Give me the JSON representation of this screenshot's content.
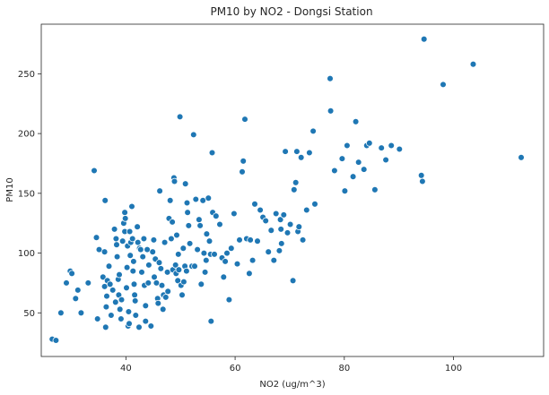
{
  "chart_data": {
    "type": "scatter",
    "title": "PM10 by NO2 - Dongsi Station",
    "xlabel": "NO2 (ug/m^3)",
    "ylabel": "PM10",
    "xlim": [
      24.5,
      116.5
    ],
    "ylim": [
      13.5,
      291.5
    ],
    "xticks": [
      40,
      60,
      80,
      100
    ],
    "yticks": [
      50,
      100,
      150,
      200,
      250
    ],
    "grid": false,
    "point_color": "#1f77b4",
    "points": [
      [
        26.5,
        28
      ],
      [
        27.2,
        27
      ],
      [
        28.1,
        50
      ],
      [
        29.1,
        75
      ],
      [
        29.8,
        85
      ],
      [
        30.1,
        83
      ],
      [
        30.8,
        62
      ],
      [
        31.2,
        69
      ],
      [
        31.8,
        50
      ],
      [
        33.1,
        75
      ],
      [
        34.2,
        169
      ],
      [
        34.6,
        113
      ],
      [
        34.8,
        45
      ],
      [
        35.1,
        103
      ],
      [
        35.8,
        80
      ],
      [
        36.1,
        101
      ],
      [
        36.2,
        144
      ],
      [
        36.3,
        38
      ],
      [
        36.1,
        72
      ],
      [
        36.4,
        55
      ],
      [
        36.6,
        77
      ],
      [
        36.5,
        64
      ],
      [
        36.9,
        89
      ],
      [
        37.1,
        74
      ],
      [
        37.3,
        48
      ],
      [
        37.6,
        69
      ],
      [
        37.9,
        120
      ],
      [
        38.2,
        112
      ],
      [
        38.3,
        107
      ],
      [
        38.4,
        97
      ],
      [
        38.1,
        59
      ],
      [
        38.6,
        78
      ],
      [
        38.7,
        65
      ],
      [
        38.8,
        82
      ],
      [
        38.9,
        53
      ],
      [
        39.1,
        45
      ],
      [
        39.2,
        61
      ],
      [
        39.4,
        110
      ],
      [
        39.6,
        125
      ],
      [
        39.8,
        118
      ],
      [
        39.8,
        134
      ],
      [
        39.9,
        129
      ],
      [
        40.1,
        71
      ],
      [
        40.3,
        106
      ],
      [
        40.2,
        88
      ],
      [
        40.4,
        39
      ],
      [
        40.5,
        51
      ],
      [
        40.6,
        41
      ],
      [
        40.7,
        118
      ],
      [
        40.8,
        98
      ],
      [
        40.9,
        109
      ],
      [
        41.1,
        139
      ],
      [
        41.2,
        112
      ],
      [
        41.3,
        85
      ],
      [
        41.4,
        93
      ],
      [
        41.5,
        74
      ],
      [
        41.6,
        65
      ],
      [
        41.7,
        60
      ],
      [
        41.8,
        48
      ],
      [
        42.1,
        122
      ],
      [
        42.2,
        109
      ],
      [
        42.4,
        38
      ],
      [
        42.5,
        104
      ],
      [
        42.7,
        103
      ],
      [
        42.9,
        84
      ],
      [
        43.1,
        97
      ],
      [
        43.3,
        112
      ],
      [
        43.4,
        73
      ],
      [
        43.6,
        56
      ],
      [
        43.6,
        43
      ],
      [
        43.9,
        103
      ],
      [
        44.1,
        75
      ],
      [
        44.2,
        90
      ],
      [
        44.6,
        39
      ],
      [
        44.9,
        101
      ],
      [
        45.2,
        80
      ],
      [
        45.1,
        111
      ],
      [
        45.4,
        95
      ],
      [
        45.6,
        75
      ],
      [
        45.8,
        62
      ],
      [
        45.9,
        58
      ],
      [
        46.1,
        92
      ],
      [
        46.2,
        152
      ],
      [
        46.4,
        87
      ],
      [
        46.6,
        73
      ],
      [
        46.8,
        53
      ],
      [
        46.9,
        65
      ],
      [
        47.1,
        109
      ],
      [
        47.3,
        63
      ],
      [
        47.6,
        84
      ],
      [
        47.7,
        68
      ],
      [
        47.9,
        129
      ],
      [
        48.1,
        144
      ],
      [
        48.3,
        112
      ],
      [
        48.5,
        126
      ],
      [
        48.6,
        86
      ],
      [
        48.8,
        163
      ],
      [
        48.9,
        160
      ],
      [
        49.1,
        90
      ],
      [
        49.3,
        115
      ],
      [
        49.2,
        83
      ],
      [
        49.5,
        77
      ],
      [
        49.6,
        99
      ],
      [
        49.7,
        86
      ],
      [
        49.9,
        214
      ],
      [
        50.1,
        73
      ],
      [
        50.3,
        65
      ],
      [
        50.5,
        104
      ],
      [
        50.6,
        76
      ],
      [
        50.8,
        89
      ],
      [
        50.9,
        158
      ],
      [
        51.1,
        85
      ],
      [
        51.2,
        142
      ],
      [
        51.3,
        134
      ],
      [
        51.5,
        123
      ],
      [
        51.7,
        108
      ],
      [
        52.1,
        89
      ],
      [
        52.4,
        199
      ],
      [
        52.6,
        89
      ],
      [
        52.8,
        145
      ],
      [
        53.1,
        103
      ],
      [
        53.4,
        128
      ],
      [
        53.6,
        123
      ],
      [
        53.8,
        74
      ],
      [
        54.1,
        144
      ],
      [
        54.3,
        100
      ],
      [
        54.5,
        84
      ],
      [
        54.7,
        94
      ],
      [
        54.8,
        116
      ],
      [
        55.1,
        146
      ],
      [
        55.3,
        110
      ],
      [
        55.5,
        99
      ],
      [
        55.6,
        43
      ],
      [
        55.8,
        184
      ],
      [
        55.9,
        134
      ],
      [
        56.2,
        99
      ],
      [
        56.5,
        131
      ],
      [
        57.2,
        124
      ],
      [
        57.6,
        96
      ],
      [
        57.9,
        80
      ],
      [
        58.2,
        93
      ],
      [
        58.5,
        100
      ],
      [
        58.9,
        61
      ],
      [
        59.3,
        104
      ],
      [
        59.8,
        133
      ],
      [
        60.4,
        91
      ],
      [
        60.8,
        111
      ],
      [
        61.3,
        168
      ],
      [
        61.5,
        177
      ],
      [
        61.8,
        212
      ],
      [
        62.1,
        112
      ],
      [
        62.6,
        83
      ],
      [
        62.8,
        111
      ],
      [
        63.2,
        94
      ],
      [
        63.6,
        141
      ],
      [
        64.1,
        110
      ],
      [
        64.6,
        136
      ],
      [
        65.1,
        130
      ],
      [
        65.6,
        127
      ],
      [
        66.1,
        101
      ],
      [
        66.6,
        119
      ],
      [
        67.1,
        94
      ],
      [
        67.5,
        133
      ],
      [
        68.1,
        102
      ],
      [
        68.3,
        128
      ],
      [
        68.4,
        120
      ],
      [
        68.5,
        108
      ],
      [
        68.9,
        132
      ],
      [
        69.2,
        185
      ],
      [
        69.6,
        117
      ],
      [
        70.1,
        124
      ],
      [
        70.6,
        77
      ],
      [
        70.8,
        153
      ],
      [
        71.1,
        159
      ],
      [
        71.3,
        185
      ],
      [
        71.5,
        118
      ],
      [
        71.7,
        122
      ],
      [
        72.1,
        180
      ],
      [
        72.4,
        111
      ],
      [
        73.1,
        136
      ],
      [
        73.6,
        184
      ],
      [
        74.3,
        202
      ],
      [
        74.6,
        141
      ],
      [
        77.4,
        246
      ],
      [
        77.5,
        219
      ],
      [
        78.2,
        169
      ],
      [
        79.6,
        179
      ],
      [
        80.1,
        152
      ],
      [
        80.5,
        190
      ],
      [
        81.6,
        164
      ],
      [
        82.1,
        210
      ],
      [
        82.6,
        176
      ],
      [
        83.6,
        170
      ],
      [
        84.1,
        190
      ],
      [
        84.6,
        192
      ],
      [
        85.6,
        153
      ],
      [
        86.8,
        188
      ],
      [
        87.6,
        178
      ],
      [
        88.6,
        190
      ],
      [
        90.1,
        187
      ],
      [
        94.1,
        165
      ],
      [
        94.3,
        160
      ],
      [
        94.6,
        279
      ],
      [
        98.1,
        241
      ],
      [
        103.6,
        258
      ],
      [
        112.4,
        180
      ]
    ]
  }
}
